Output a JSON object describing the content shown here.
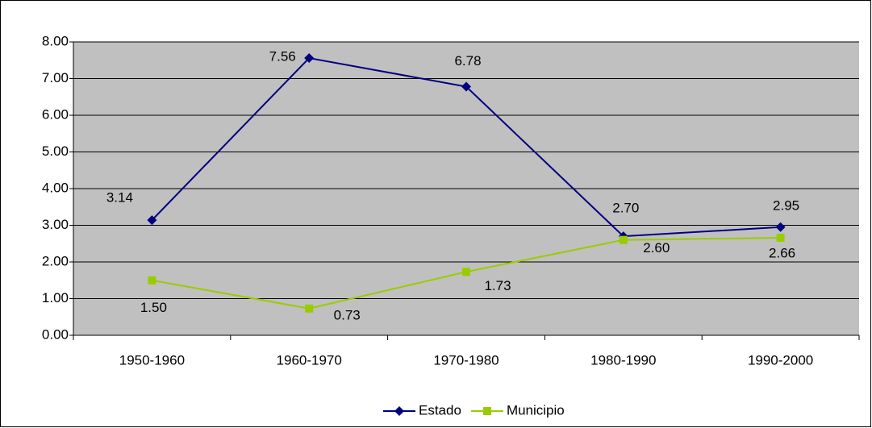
{
  "chart_data": {
    "type": "line",
    "categories": [
      "1950-1960",
      "1960-1970",
      "1970-1980",
      "1980-1990",
      "1990-2000"
    ],
    "series": [
      {
        "name": "Estado",
        "color": "#000080",
        "marker": "diamond",
        "values": [
          3.14,
          7.56,
          6.78,
          2.7,
          2.95
        ],
        "value_labels": [
          "3.14",
          "7.56",
          "6.78",
          "2.70",
          "2.95"
        ]
      },
      {
        "name": "Municipio",
        "color": "#99cc00",
        "marker": "square",
        "values": [
          1.5,
          0.73,
          1.73,
          2.6,
          2.66
        ],
        "value_labels": [
          "1.50",
          "0.73",
          "1.73",
          "2.60",
          "2.66"
        ]
      }
    ],
    "ylim": [
      0,
      8
    ],
    "yticks": [
      {
        "value": 0,
        "label": "0.00"
      },
      {
        "value": 1,
        "label": "1.00"
      },
      {
        "value": 2,
        "label": "2.00"
      },
      {
        "value": 3,
        "label": "3.00"
      },
      {
        "value": 4,
        "label": "4.00"
      },
      {
        "value": 5,
        "label": "5.00"
      },
      {
        "value": 6,
        "label": "6.00"
      },
      {
        "value": 7,
        "label": "7.00"
      },
      {
        "value": 8,
        "label": "8.00"
      }
    ],
    "grid": true,
    "plot_background": "#c0c0c0",
    "legend": "bottom"
  }
}
